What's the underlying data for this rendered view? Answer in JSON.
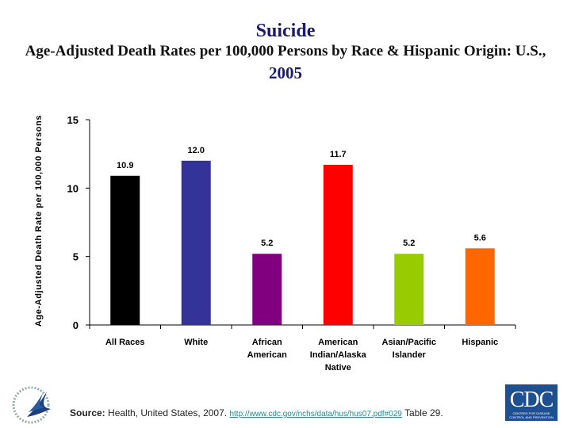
{
  "title": "Suicide",
  "subtitle": "Age-Adjusted Death Rates per 100,000 Persons by Race & Hispanic Origin: U.S.,",
  "subtitle_year": "2005",
  "chart_data": {
    "type": "bar",
    "ylabel": "Age-Adjusted Death Rate per 100,000 Persons",
    "xlabel": "",
    "ylim": [
      0,
      15
    ],
    "yticks": [
      0,
      5,
      10,
      15
    ],
    "categories": [
      [
        "All Races"
      ],
      [
        "White"
      ],
      [
        "African",
        "American"
      ],
      [
        "American",
        "Indian/Alaska",
        "Native"
      ],
      [
        "Asian/Pacific",
        "Islander"
      ],
      [
        "Hispanic"
      ]
    ],
    "values": [
      10.9,
      12.0,
      5.2,
      11.7,
      5.2,
      5.6
    ],
    "value_labels": [
      "10.9",
      "12.0",
      "5.2",
      "11.7",
      "5.2",
      "5.6"
    ],
    "colors": [
      "#000000",
      "#333399",
      "#800080",
      "#ff0000",
      "#99cc00",
      "#ff6600"
    ],
    "grid": false,
    "legend": "none"
  },
  "footer": {
    "source_label": "Source:",
    "source_text": " Health, United States, 2007. ",
    "link": "http://www.cdc.gov/nchs/data/hus/hus07.pdf#029",
    "table": "  Table 29.",
    "cdc_logo": "CDC",
    "cdc_logo_sub": "CENTERS FOR DISEASE CONTROL AND PREVENTION"
  }
}
